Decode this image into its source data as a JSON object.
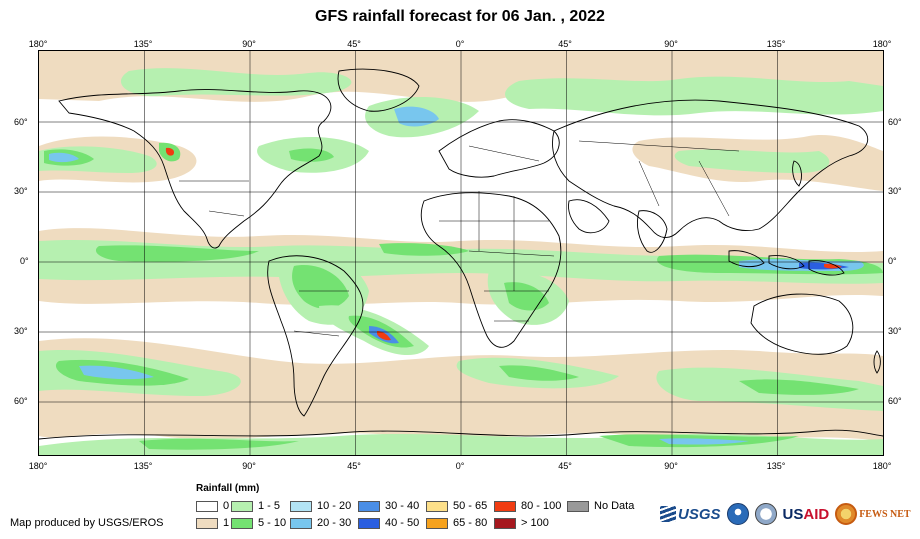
{
  "title": "GFS rainfall forecast for 06 Jan. , 2022",
  "axes": {
    "top_lon_labels": [
      "180°",
      "135°",
      "90°",
      "45°",
      "0°",
      "45°",
      "90°",
      "135°",
      "180°"
    ],
    "bottom_lon_labels": [
      "180°",
      "135°",
      "90°",
      "45°",
      "0°",
      "45°",
      "90°",
      "135°",
      "180°"
    ],
    "left_lat_labels": [
      "60°",
      "30°",
      "0°",
      "30°",
      "60°"
    ],
    "right_lat_labels": [
      "60°",
      "30°",
      "0°",
      "30°",
      "60°"
    ]
  },
  "legend": {
    "title": "Rainfall (mm)",
    "items": [
      {
        "label": "0",
        "color": "#ffffff"
      },
      {
        "label": "1",
        "color": "#efdcc0"
      },
      {
        "label": "1 - 5",
        "color": "#b6f0b0"
      },
      {
        "label": "5 - 10",
        "color": "#74e272"
      },
      {
        "label": "10 - 20",
        "color": "#b3e4f5"
      },
      {
        "label": "20 - 30",
        "color": "#78c6ee"
      },
      {
        "label": "30 - 40",
        "color": "#4a8ee6"
      },
      {
        "label": "40 - 50",
        "color": "#2a5ee0"
      },
      {
        "label": "50 - 65",
        "color": "#fde08a"
      },
      {
        "label": "65 - 80",
        "color": "#f6a21d"
      },
      {
        "label": "80 - 100",
        "color": "#f03c12"
      },
      {
        "label": "> 100",
        "color": "#a6181e"
      },
      {
        "label": "No Data",
        "color": "#999999"
      }
    ]
  },
  "credit": "Map produced by USGS/EROS",
  "logos": {
    "usgs": "USGS",
    "usaid_prefix": "US",
    "usaid_suffix": "AID",
    "fews": "FEWS NET",
    "icons": [
      "usgs-logo-icon",
      "noaa-logo-icon",
      "usaid-seal-icon",
      "fews-net-logo-icon"
    ]
  }
}
